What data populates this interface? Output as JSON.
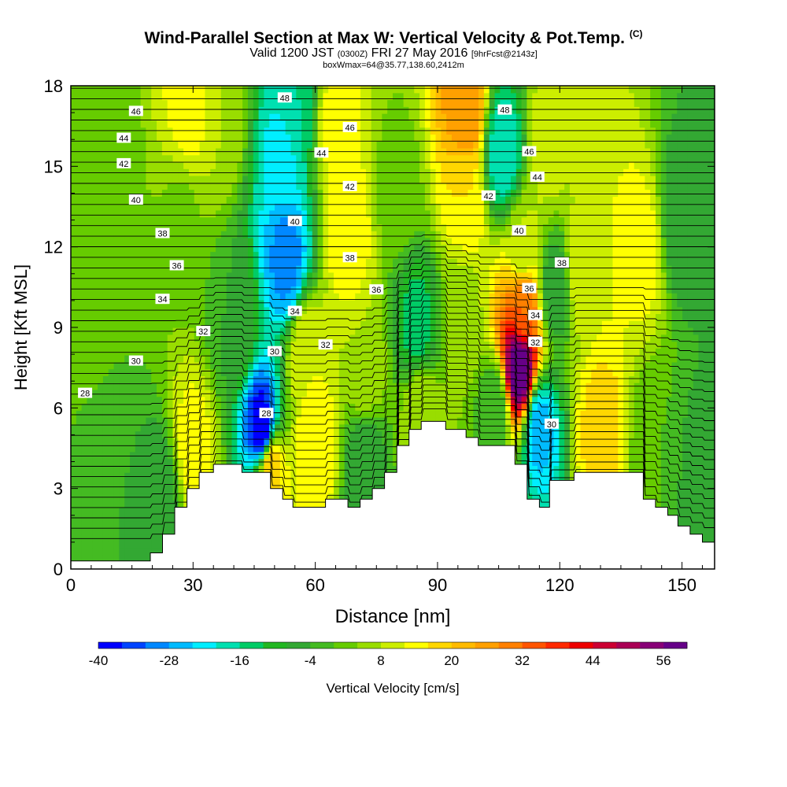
{
  "chart_data": {
    "type": "heatmap",
    "title": "Wind-Parallel Section at Max W: Vertical Velocity & Pot.Temp.",
    "title_mark": "(C)",
    "subtitle_valid": "Valid 1200 JST",
    "subtitle_utc": "(0300Z)",
    "subtitle_date": "FRI 27 May 2016",
    "subtitle_fcst": "[9hrFcst@2143z]",
    "subtitle_box": "boxWmax=64@35.77,138.60,2412m",
    "xlabel": "Distance [nm]",
    "ylabel": "Height [Kft MSL]",
    "xlim": [
      0,
      158
    ],
    "ylim": [
      0,
      18
    ],
    "x_ticks": [
      "0",
      "30",
      "60",
      "90",
      "120",
      "150"
    ],
    "y_ticks": [
      "0",
      "3",
      "6",
      "9",
      "12",
      "15",
      "18"
    ],
    "colorbar": {
      "label": "Vertical Velocity [cm/s]",
      "tick_labels": [
        "-40",
        "-28",
        "-16",
        "-4",
        "8",
        "20",
        "32",
        "44",
        "56"
      ],
      "bin_edges": [
        -40,
        -36,
        -32,
        -28,
        -24,
        -20,
        -16,
        -12,
        -8,
        -4,
        0,
        4,
        8,
        12,
        16,
        20,
        24,
        28,
        32,
        36,
        40,
        44,
        48,
        52,
        56,
        60
      ],
      "colors": [
        "#0000ff",
        "#0044ff",
        "#0088ff",
        "#00bbff",
        "#00eeff",
        "#00e0b0",
        "#00cc66",
        "#22b722",
        "#33a833",
        "#44bb22",
        "#66cc00",
        "#99dd00",
        "#ccee00",
        "#ffff00",
        "#ffd700",
        "#ffbb00",
        "#ffa000",
        "#ff8000",
        "#ff5500",
        "#ff2a00",
        "#ee0000",
        "#cc0033",
        "#aa0055",
        "#880077",
        "#660088"
      ]
    },
    "vertical_velocity_features": [
      {
        "x": 9,
        "z": 8,
        "w": 0
      },
      {
        "x": 10,
        "z": 15.5,
        "w": 2
      },
      {
        "x": 27,
        "z": 13,
        "w": 3
      },
      {
        "x": 22,
        "z": 2.8,
        "w": -7
      },
      {
        "x": 30,
        "z": 4.5,
        "w": 14
      },
      {
        "x": 40,
        "z": 9,
        "w": -4
      },
      {
        "x": 29,
        "z": 17,
        "w": 14
      },
      {
        "x": 37,
        "z": 17,
        "w": 8
      },
      {
        "x": 47,
        "z": 5.2,
        "w": -40
      },
      {
        "x": 49,
        "z": 3.8,
        "w": 20
      },
      {
        "x": 53,
        "z": 11.5,
        "w": -30
      },
      {
        "x": 52,
        "z": 15.5,
        "w": -22
      },
      {
        "x": 55,
        "z": 17,
        "w": -16
      },
      {
        "x": 58,
        "z": 8,
        "w": 12
      },
      {
        "x": 60,
        "z": 4.6,
        "w": 16
      },
      {
        "x": 65,
        "z": 16.5,
        "w": 14
      },
      {
        "x": 68,
        "z": 12.5,
        "w": 16
      },
      {
        "x": 72,
        "z": 7.5,
        "w": 8
      },
      {
        "x": 72,
        "z": 4,
        "w": -8
      },
      {
        "x": 80,
        "z": 14,
        "w": 2
      },
      {
        "x": 85,
        "z": 9,
        "w": -14
      },
      {
        "x": 86,
        "z": 6,
        "w": 8
      },
      {
        "x": 97,
        "z": 17,
        "w": 28
      },
      {
        "x": 97,
        "z": 14,
        "w": 16
      },
      {
        "x": 96,
        "z": 9.5,
        "w": 6
      },
      {
        "x": 104,
        "z": 6,
        "w": -4
      },
      {
        "x": 106,
        "z": 15.5,
        "w": -20
      },
      {
        "x": 110,
        "z": 7.5,
        "w": 60
      },
      {
        "x": 111,
        "z": 9.7,
        "w": 32
      },
      {
        "x": 111,
        "z": 12,
        "w": 8
      },
      {
        "x": 115,
        "z": 5.2,
        "w": -26
      },
      {
        "x": 117,
        "z": 16,
        "w": 10
      },
      {
        "x": 119,
        "z": 10.5,
        "w": -8
      },
      {
        "x": 125,
        "z": 11,
        "w": 12
      },
      {
        "x": 130,
        "z": 5.2,
        "w": 18
      },
      {
        "x": 140,
        "z": 12,
        "w": 14
      },
      {
        "x": 143,
        "z": 4.5,
        "w": 0
      },
      {
        "x": 150,
        "z": 13,
        "w": -8
      },
      {
        "x": 155,
        "z": 3.5,
        "w": -6
      }
    ],
    "terrain_top_kft": [
      [
        0,
        0.3
      ],
      [
        19.5,
        0.3
      ],
      [
        19.5,
        0.6
      ],
      [
        22.5,
        0.6
      ],
      [
        22.5,
        1.3
      ],
      [
        25.5,
        1.3
      ],
      [
        25.5,
        2.3
      ],
      [
        28.5,
        2.3
      ],
      [
        28.5,
        3.0
      ],
      [
        31.5,
        3.0
      ],
      [
        31.5,
        3.6
      ],
      [
        35,
        3.6
      ],
      [
        35,
        3.9
      ],
      [
        42,
        3.9
      ],
      [
        42,
        3.6
      ],
      [
        49,
        3.6
      ],
      [
        49,
        3.0
      ],
      [
        52,
        3.0
      ],
      [
        52,
        2.6
      ],
      [
        54.5,
        2.6
      ],
      [
        54.5,
        2.3
      ],
      [
        62.5,
        2.3
      ],
      [
        62.5,
        2.6
      ],
      [
        68,
        2.6
      ],
      [
        68,
        2.3
      ],
      [
        71,
        2.3
      ],
      [
        71,
        2.6
      ],
      [
        74,
        2.6
      ],
      [
        74,
        3.0
      ],
      [
        77,
        3.0
      ],
      [
        77,
        3.6
      ],
      [
        80,
        3.6
      ],
      [
        80,
        4.6
      ],
      [
        83,
        4.6
      ],
      [
        83,
        5.2
      ],
      [
        86,
        5.2
      ],
      [
        86,
        5.5
      ],
      [
        92,
        5.5
      ],
      [
        92,
        5.2
      ],
      [
        97,
        5.2
      ],
      [
        97,
        4.9
      ],
      [
        100,
        4.9
      ],
      [
        100,
        4.6
      ],
      [
        109,
        4.6
      ],
      [
        109,
        3.9
      ],
      [
        112,
        3.9
      ],
      [
        112,
        2.6
      ],
      [
        115,
        2.6
      ],
      [
        115,
        2.3
      ],
      [
        117.5,
        2.3
      ],
      [
        117.5,
        3.3
      ],
      [
        123.5,
        3.3
      ],
      [
        123.5,
        3.6
      ],
      [
        140.5,
        3.6
      ],
      [
        140.5,
        2.6
      ],
      [
        143.5,
        2.6
      ],
      [
        143.5,
        2.3
      ],
      [
        146.5,
        2.3
      ],
      [
        146.5,
        2.0
      ],
      [
        149,
        2.0
      ],
      [
        149,
        1.6
      ],
      [
        152,
        1.6
      ],
      [
        152,
        1.3
      ],
      [
        155,
        1.3
      ],
      [
        155,
        1.0
      ],
      [
        158,
        1.0
      ]
    ],
    "theta_labels": [
      {
        "text": "48",
        "x": 52.5,
        "z": 17.55
      },
      {
        "text": "48",
        "x": 106.5,
        "z": 17.1
      },
      {
        "text": "46",
        "x": 16,
        "z": 17.05
      },
      {
        "text": "46",
        "x": 68.5,
        "z": 16.45
      },
      {
        "text": "46",
        "x": 112.5,
        "z": 15.55
      },
      {
        "text": "44",
        "x": 13,
        "z": 16.05
      },
      {
        "text": "44",
        "x": 61.5,
        "z": 15.5
      },
      {
        "text": "44",
        "x": 114.5,
        "z": 14.6
      },
      {
        "text": "42",
        "x": 13,
        "z": 15.1
      },
      {
        "text": "42",
        "x": 68.5,
        "z": 14.25
      },
      {
        "text": "42",
        "x": 102.5,
        "z": 13.9
      },
      {
        "text": "40",
        "x": 16,
        "z": 13.75
      },
      {
        "text": "40",
        "x": 55,
        "z": 12.95
      },
      {
        "text": "40",
        "x": 110,
        "z": 12.6
      },
      {
        "text": "38",
        "x": 22.5,
        "z": 12.5
      },
      {
        "text": "38",
        "x": 68.5,
        "z": 11.6
      },
      {
        "text": "38",
        "x": 120.5,
        "z": 11.4
      },
      {
        "text": "36",
        "x": 26,
        "z": 11.3
      },
      {
        "text": "36",
        "x": 75,
        "z": 10.4
      },
      {
        "text": "36",
        "x": 112.5,
        "z": 10.45
      },
      {
        "text": "34",
        "x": 22.5,
        "z": 10.05
      },
      {
        "text": "34",
        "x": 55,
        "z": 9.6
      },
      {
        "text": "34",
        "x": 114,
        "z": 9.45
      },
      {
        "text": "32",
        "x": 32.5,
        "z": 8.85
      },
      {
        "text": "32",
        "x": 62.5,
        "z": 8.35
      },
      {
        "text": "32",
        "x": 114,
        "z": 8.45
      },
      {
        "text": "30",
        "x": 16,
        "z": 7.75
      },
      {
        "text": "30",
        "x": 50,
        "z": 8.1
      },
      {
        "text": "30",
        "x": 118,
        "z": 5.4
      },
      {
        "text": "28",
        "x": 3.5,
        "z": 6.55
      },
      {
        "text": "28",
        "x": 48,
        "z": 5.8
      }
    ]
  }
}
